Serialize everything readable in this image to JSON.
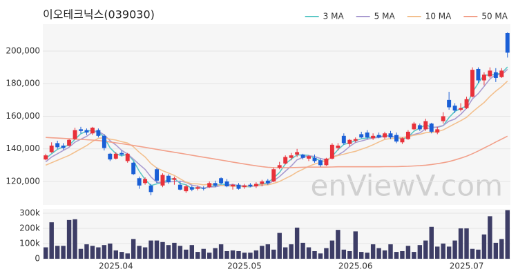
{
  "chart_data": [
    {
      "type": "candlestick",
      "title": "이오테크닉스(039030)",
      "watermark": "enViewV.com",
      "up_color": "#e8313a",
      "down_color": "#1a5fd6",
      "grid": true,
      "legend": "top-right",
      "ylim": [
        105600,
        216500
      ],
      "yticks": [
        {
          "value": 120000,
          "label": "120,000"
        },
        {
          "value": 140000,
          "label": "140,000"
        },
        {
          "value": 160000,
          "label": "160,000"
        },
        {
          "value": 180000,
          "label": "180,000"
        },
        {
          "value": 200000,
          "label": "200,000"
        }
      ],
      "open": [
        133500,
        138000,
        143500,
        142000,
        142000,
        146000,
        152000,
        151500,
        149500,
        151500,
        148000,
        137000,
        134000,
        137500,
        132500,
        131500,
        122000,
        119000,
        117500,
        127500,
        117500,
        123500,
        121000,
        118000,
        114000,
        116500,
        115500,
        116000,
        116500,
        119000,
        122000,
        120000,
        117000,
        118000,
        116500,
        118000,
        117000,
        118500,
        120500,
        120000,
        128500,
        131000,
        134500,
        136500,
        136500,
        134000,
        134500,
        133000,
        130000,
        134000,
        140500,
        148000,
        143000,
        145000,
        149000,
        150000,
        146500,
        148500,
        147000,
        149500,
        148500,
        144000,
        146000,
        152000,
        154500,
        152000,
        155500,
        150000,
        157000,
        170000,
        166500,
        164000,
        165000,
        172000,
        189000,
        182000,
        184500,
        187000,
        184000,
        211000
      ],
      "high": [
        137000,
        144000,
        145000,
        143500,
        146000,
        153000,
        153500,
        152500,
        153500,
        152500,
        149000,
        137500,
        138000,
        139000,
        137500,
        132000,
        123000,
        122500,
        118500,
        128500,
        125000,
        124500,
        123000,
        120000,
        118000,
        117500,
        117500,
        117000,
        120000,
        120500,
        122500,
        121500,
        118500,
        119000,
        118500,
        119000,
        119500,
        121000,
        121500,
        128500,
        132000,
        136000,
        137500,
        140000,
        137000,
        136000,
        136500,
        134000,
        134500,
        143500,
        143500,
        149500,
        146000,
        147000,
        150500,
        151500,
        149500,
        150000,
        150500,
        151000,
        150000,
        147000,
        151500,
        156500,
        155500,
        158500,
        156000,
        153500,
        162500,
        175000,
        168000,
        168000,
        172000,
        190000,
        190000,
        187000,
        190000,
        189500,
        189500,
        211500
      ],
      "low": [
        133000,
        137500,
        140000,
        139500,
        141500,
        145500,
        149500,
        148500,
        148500,
        147000,
        139000,
        132500,
        133500,
        135500,
        131500,
        124000,
        115500,
        118000,
        111500,
        119000,
        116500,
        118500,
        118000,
        114500,
        113000,
        114000,
        114500,
        114500,
        116000,
        116500,
        118000,
        116500,
        115000,
        115000,
        115500,
        116500,
        116000,
        117000,
        118000,
        119500,
        127500,
        130500,
        133000,
        135000,
        133500,
        132500,
        131500,
        129000,
        129500,
        133500,
        139000,
        142500,
        141500,
        144000,
        146500,
        146000,
        145500,
        146500,
        146000,
        146000,
        143500,
        143000,
        145500,
        151500,
        151000,
        151000,
        149500,
        149000,
        155500,
        164000,
        162000,
        163000,
        164500,
        171500,
        180500,
        179000,
        183500,
        181000,
        183500,
        196000
      ],
      "close": [
        136000,
        142000,
        141000,
        140500,
        145500,
        151500,
        151000,
        150000,
        153000,
        148000,
        140500,
        133500,
        137000,
        136500,
        137000,
        124500,
        117500,
        121500,
        113500,
        120500,
        124000,
        119500,
        122000,
        115000,
        117000,
        115000,
        116500,
        115500,
        119000,
        117500,
        119000,
        117000,
        118000,
        115500,
        117500,
        117000,
        118500,
        120000,
        119000,
        127500,
        130000,
        135000,
        136000,
        138000,
        134500,
        135500,
        132500,
        130000,
        134000,
        142500,
        142000,
        143500,
        145500,
        146000,
        147000,
        147000,
        148000,
        147000,
        149500,
        147000,
        144500,
        146500,
        150500,
        155500,
        152000,
        157000,
        150500,
        152000,
        160000,
        165500,
        163500,
        165000,
        170500,
        188500,
        182000,
        185500,
        188000,
        183500,
        188000,
        199000
      ],
      "series": [
        {
          "name": "3 MA",
          "color": "#5cc8c6",
          "values": [
            134000,
            137000,
            139700,
            141200,
            142300,
            145800,
            149300,
            150800,
            151300,
            150300,
            147200,
            140700,
            137000,
            135700,
            136800,
            132700,
            126300,
            121200,
            117500,
            118500,
            119300,
            121300,
            121800,
            118800,
            118000,
            115700,
            116200,
            115700,
            117000,
            117300,
            118500,
            117800,
            118000,
            116800,
            117000,
            116700,
            117700,
            118500,
            119200,
            122200,
            125500,
            130800,
            133700,
            136300,
            136200,
            136000,
            134200,
            132700,
            132200,
            135500,
            139500,
            142700,
            143700,
            145000,
            146200,
            146700,
            147300,
            147300,
            148200,
            147800,
            147000,
            146000,
            147200,
            150800,
            152700,
            154800,
            153200,
            153200,
            154200,
            159200,
            163000,
            164700,
            166300,
            174700,
            180300,
            185300,
            185200,
            185700,
            186500,
            190200
          ]
        },
        {
          "name": "5 MA",
          "color": "#a99bd0",
          "values": [
            132000,
            135000,
            137000,
            139000,
            141000,
            144100,
            145900,
            147700,
            150200,
            150700,
            148600,
            145000,
            142400,
            139100,
            136900,
            133700,
            130500,
            127400,
            122800,
            119500,
            119400,
            119800,
            119900,
            120200,
            119500,
            117700,
            117100,
            115800,
            116600,
            116700,
            117500,
            117600,
            118200,
            117400,
            117400,
            117000,
            117300,
            117600,
            118400,
            120400,
            123000,
            126300,
            129500,
            133300,
            134700,
            135800,
            135300,
            134100,
            133300,
            134900,
            136200,
            138400,
            141500,
            143900,
            144800,
            145800,
            146700,
            147000,
            147700,
            147700,
            147200,
            146900,
            147600,
            148800,
            149800,
            152300,
            153100,
            153400,
            154300,
            157000,
            158300,
            161200,
            164900,
            170600,
            173900,
            178300,
            182900,
            185500,
            185400,
            188800
          ]
        },
        {
          "name": "10 MA",
          "color": "#f3c08e",
          "values": [
            130000,
            131500,
            133000,
            134500,
            136000,
            138000,
            140000,
            142000,
            144500,
            146500,
            146800,
            146000,
            145400,
            144400,
            143600,
            141300,
            137900,
            135000,
            131000,
            128300,
            126600,
            125200,
            123700,
            121600,
            119600,
            118600,
            118500,
            117900,
            118400,
            118100,
            117600,
            117400,
            117000,
            117100,
            117100,
            117300,
            117500,
            117900,
            117900,
            118800,
            120000,
            121800,
            123600,
            125800,
            127500,
            129300,
            130700,
            131700,
            133200,
            134700,
            135900,
            136700,
            137700,
            138500,
            139800,
            141000,
            142500,
            144200,
            145800,
            146300,
            146600,
            146900,
            147400,
            148400,
            148900,
            149900,
            150100,
            150600,
            151600,
            153500,
            155400,
            157300,
            159300,
            162600,
            165600,
            168400,
            172200,
            175400,
            178200,
            181600
          ]
        },
        {
          "name": "50 MA",
          "color": "#f2a08a",
          "values": [
            147000,
            146800,
            146600,
            146400,
            146200,
            146000,
            145800,
            145600,
            145400,
            145100,
            144700,
            144200,
            143700,
            143200,
            142700,
            142100,
            141500,
            140900,
            140300,
            139700,
            139100,
            138500,
            137900,
            137300,
            136700,
            136100,
            135500,
            134900,
            134300,
            133700,
            133100,
            132500,
            131900,
            131300,
            130700,
            130100,
            129600,
            129100,
            128700,
            128500,
            128400,
            128400,
            128500,
            128600,
            128700,
            128800,
            128800,
            128800,
            128800,
            128900,
            129000,
            129000,
            129000,
            129000,
            129000,
            129000,
            129000,
            129000,
            129100,
            129100,
            129100,
            129200,
            129300,
            129500,
            129700,
            130000,
            130400,
            130900,
            131500,
            132200,
            133200,
            134300,
            135500,
            137000,
            138700,
            140500,
            142300,
            144200,
            146000,
            147800
          ]
        }
      ]
    },
    {
      "type": "bar",
      "color": "#3d3d66",
      "ylim": [
        0,
        327000
      ],
      "yticks": [
        0,
        {
          "value": 100000,
          "label": "100k"
        },
        {
          "value": 200000,
          "label": "200k"
        },
        {
          "value": 300000,
          "label": "300k"
        }
      ],
      "categories": [
        null,
        null,
        null,
        null,
        null,
        null,
        null,
        null,
        null,
        null,
        null,
        null,
        "2025.04",
        null,
        null,
        null,
        null,
        null,
        null,
        null,
        null,
        null,
        null,
        null,
        null,
        null,
        null,
        null,
        null,
        null,
        null,
        null,
        null,
        null,
        "2025.05",
        null,
        null,
        null,
        null,
        null,
        null,
        null,
        null,
        null,
        null,
        null,
        null,
        null,
        null,
        null,
        null,
        null,
        null,
        "2025.06",
        null,
        null,
        null,
        null,
        null,
        null,
        null,
        null,
        null,
        null,
        null,
        null,
        null,
        null,
        null,
        null,
        null,
        null,
        "2025.07",
        null,
        null,
        null,
        null,
        null,
        null,
        null
      ],
      "values": [
        75000,
        240000,
        85000,
        85000,
        255000,
        260000,
        65000,
        95000,
        85000,
        75000,
        90000,
        100000,
        55000,
        45000,
        35000,
        130000,
        85000,
        75000,
        120000,
        120000,
        110000,
        90000,
        105000,
        85000,
        60000,
        90000,
        45000,
        65000,
        40000,
        70000,
        95000,
        50000,
        55000,
        50000,
        40000,
        40000,
        55000,
        85000,
        95000,
        60000,
        170000,
        75000,
        95000,
        205000,
        105000,
        75000,
        50000,
        35000,
        70000,
        120000,
        190000,
        60000,
        50000,
        180000,
        45000,
        40000,
        95000,
        70000,
        55000,
        95000,
        45000,
        50000,
        85000,
        45000,
        90000,
        120000,
        210000,
        80000,
        100000,
        80000,
        120000,
        200000,
        200000,
        65000,
        60000,
        160000,
        280000,
        105000,
        130000,
        320000
      ]
    }
  ]
}
